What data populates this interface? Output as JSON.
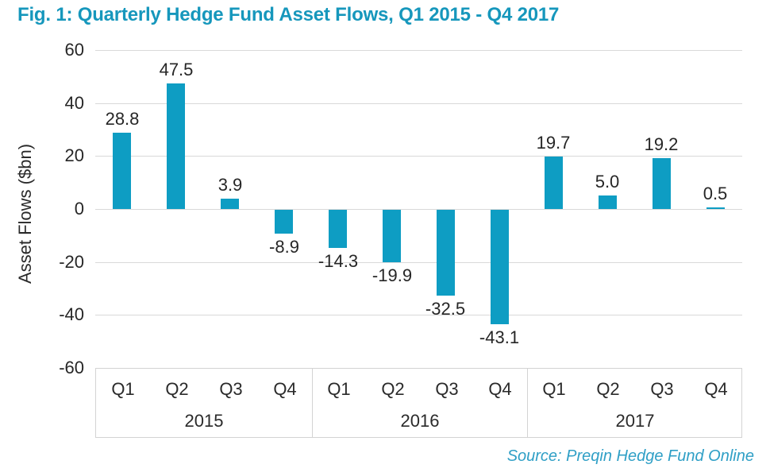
{
  "title": "Fig. 1: Quarterly Hedge Fund Asset Flows, Q1 2015 - Q4 2017",
  "source": "Source: Preqin Hedge Fund Online",
  "chart_data": {
    "type": "bar",
    "title": "Fig. 1: Quarterly Hedge Fund Asset Flows, Q1 2015 - Q4 2017",
    "ylabel": "Asset Flows ($bn)",
    "xlabel": "",
    "ylim": [
      -60,
      60
    ],
    "yticks": [
      60,
      40,
      20,
      0,
      -20,
      -40,
      -60
    ],
    "grid": true,
    "legend": false,
    "bar_color": "#0E9DC3",
    "categories": [
      "Q1",
      "Q2",
      "Q3",
      "Q4",
      "Q1",
      "Q2",
      "Q3",
      "Q4",
      "Q1",
      "Q2",
      "Q3",
      "Q4"
    ],
    "year_groups": [
      {
        "label": "2015",
        "span": 4
      },
      {
        "label": "2016",
        "span": 4
      },
      {
        "label": "2017",
        "span": 4
      }
    ],
    "values": [
      28.8,
      47.5,
      3.9,
      -8.9,
      -14.3,
      -19.9,
      -32.5,
      -43.1,
      19.7,
      5.0,
      19.2,
      0.5
    ],
    "value_labels": [
      "28.8",
      "47.5",
      "3.9",
      "-8.9",
      "-14.3",
      "-19.9",
      "-32.5",
      "-43.1",
      "19.7",
      "5.0",
      "19.2",
      "0.5"
    ]
  },
  "colors": {
    "accent": "#1697BC",
    "bar": "#0E9DC3",
    "grid": "#D9D9D9",
    "axis_text": "#262626",
    "source": "#2F9FC6"
  }
}
